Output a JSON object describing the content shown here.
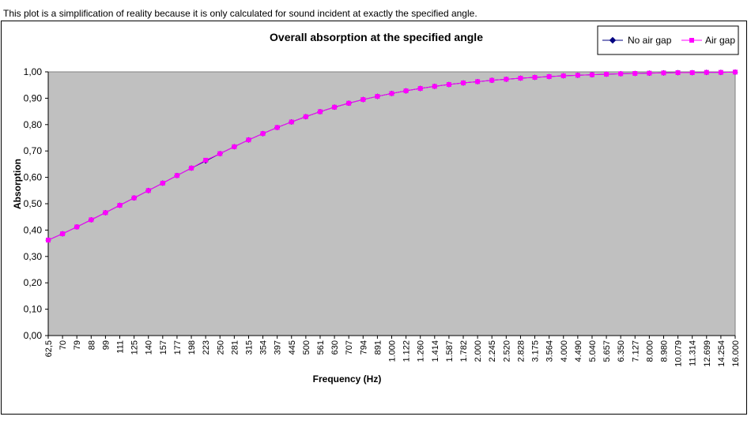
{
  "note": "This plot is a simplification of reality because it is only calculated for sound incident at exactly the specified angle.",
  "chart_data": {
    "type": "line",
    "title": "Overall absorption at the specified angle",
    "xlabel": "Frequency (Hz)",
    "ylabel": "Absorption",
    "ylim": [
      0,
      1
    ],
    "y_ticks": [
      "0,00",
      "0,10",
      "0,20",
      "0,30",
      "0,40",
      "0,50",
      "0,60",
      "0,70",
      "0,80",
      "0,90",
      "1,00"
    ],
    "categories": [
      "62,5",
      "70",
      "79",
      "88",
      "99",
      "111",
      "125",
      "140",
      "157",
      "177",
      "198",
      "223",
      "250",
      "281",
      "315",
      "354",
      "397",
      "445",
      "500",
      "561",
      "630",
      "707",
      "794",
      "891",
      "1.000",
      "1.122",
      "1.260",
      "1.414",
      "1.587",
      "1.782",
      "2.000",
      "2.245",
      "2.520",
      "2.828",
      "3.175",
      "3.564",
      "4.000",
      "4.490",
      "5.040",
      "5.657",
      "6.350",
      "7.127",
      "8.000",
      "8.980",
      "10.079",
      "11.314",
      "12.699",
      "14.254",
      "16.000"
    ],
    "grid": false,
    "legend_position": "top-right",
    "plot_background": "#c0c0c0",
    "series": [
      {
        "name": "No air gap",
        "color": "#000080",
        "marker": "diamond",
        "values": [
          0.362,
          0.386,
          0.412,
          0.439,
          0.466,
          0.494,
          0.522,
          0.55,
          0.578,
          0.607,
          0.635,
          0.662,
          0.69,
          0.716,
          0.742,
          0.766,
          0.789,
          0.81,
          0.83,
          0.849,
          0.866,
          0.881,
          0.895,
          0.907,
          0.918,
          0.928,
          0.937,
          0.945,
          0.952,
          0.958,
          0.963,
          0.968,
          0.972,
          0.976,
          0.979,
          0.982,
          0.985,
          0.987,
          0.989,
          0.991,
          0.993,
          0.994,
          0.995,
          0.996,
          0.997,
          0.997,
          0.998,
          0.998,
          0.999
        ]
      },
      {
        "name": "Air gap",
        "color": "#ff00ff",
        "marker": "square",
        "values": [
          0.362,
          0.386,
          0.412,
          0.439,
          0.466,
          0.494,
          0.522,
          0.55,
          0.578,
          0.607,
          0.635,
          0.665,
          0.69,
          0.716,
          0.742,
          0.766,
          0.789,
          0.81,
          0.83,
          0.849,
          0.866,
          0.881,
          0.895,
          0.907,
          0.918,
          0.928,
          0.937,
          0.945,
          0.952,
          0.958,
          0.963,
          0.968,
          0.972,
          0.976,
          0.979,
          0.982,
          0.985,
          0.987,
          0.989,
          0.991,
          0.993,
          0.994,
          0.995,
          0.996,
          0.997,
          0.997,
          0.998,
          0.998,
          0.999
        ]
      }
    ]
  }
}
